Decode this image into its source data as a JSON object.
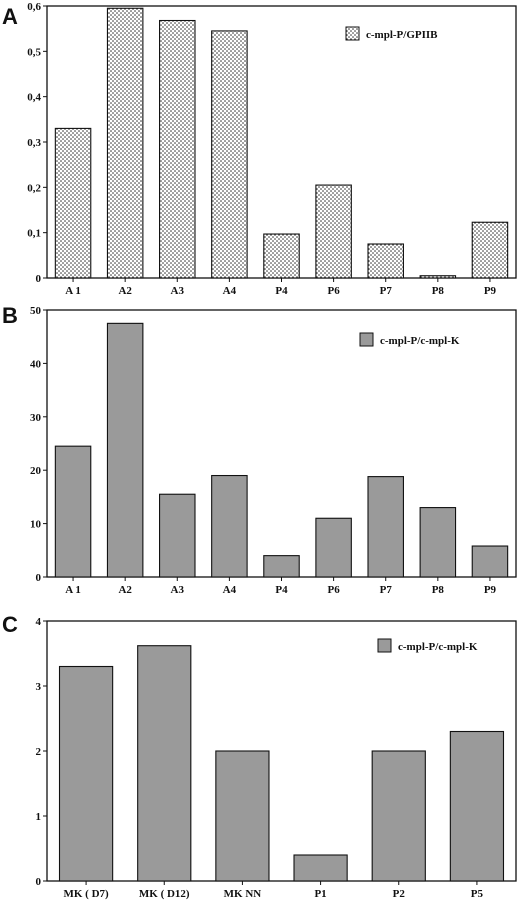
{
  "figure": {
    "panels": [
      {
        "letter": "A"
      },
      {
        "letter": "B"
      },
      {
        "letter": "C"
      }
    ]
  },
  "chart_data": [
    {
      "type": "bar",
      "panel": "A",
      "categories": [
        "A 1",
        "A2",
        "A3",
        "A4",
        "P4",
        "P6",
        "P7",
        "P8",
        "P9"
      ],
      "series": [
        {
          "name": "c-mpl-P/GPIIB",
          "values": [
            0.33,
            0.595,
            0.568,
            0.545,
            0.097,
            0.205,
            0.075,
            0.005,
            0.123
          ]
        }
      ],
      "yticks": [
        "0",
        "0,1",
        "0,2",
        "0,3",
        "0,4",
        "0,5",
        "0,6"
      ],
      "ylim": [
        0,
        0.6
      ],
      "fill": "dotted",
      "legend_position": "top-right",
      "grid": false
    },
    {
      "type": "bar",
      "panel": "B",
      "categories": [
        "A 1",
        "A2",
        "A3",
        "A4",
        "P4",
        "P6",
        "P7",
        "P8",
        "P9"
      ],
      "series": [
        {
          "name": "c-mpl-P/c-mpl-K",
          "values": [
            24.5,
            47.5,
            15.5,
            19,
            4,
            11,
            18.8,
            13,
            5.8
          ]
        }
      ],
      "yticks": [
        "0",
        "10",
        "20",
        "30",
        "40",
        "50"
      ],
      "ylim": [
        0,
        50
      ],
      "fill": "#9a9a9a",
      "legend_position": "top-right",
      "grid": false
    },
    {
      "type": "bar",
      "panel": "C",
      "categories": [
        "MK ( D7)",
        "MK ( D12)",
        "MK NN",
        "P1",
        "P2",
        "P5"
      ],
      "series": [
        {
          "name": "c-mpl-P/c-mpl-K",
          "values": [
            3.3,
            3.62,
            2.0,
            0.4,
            2.0,
            2.3
          ]
        }
      ],
      "yticks": [
        "0",
        "1",
        "2",
        "3",
        "4"
      ],
      "ylim": [
        0,
        4
      ],
      "fill": "#9a9a9a",
      "legend_position": "top-right",
      "grid": false
    }
  ]
}
